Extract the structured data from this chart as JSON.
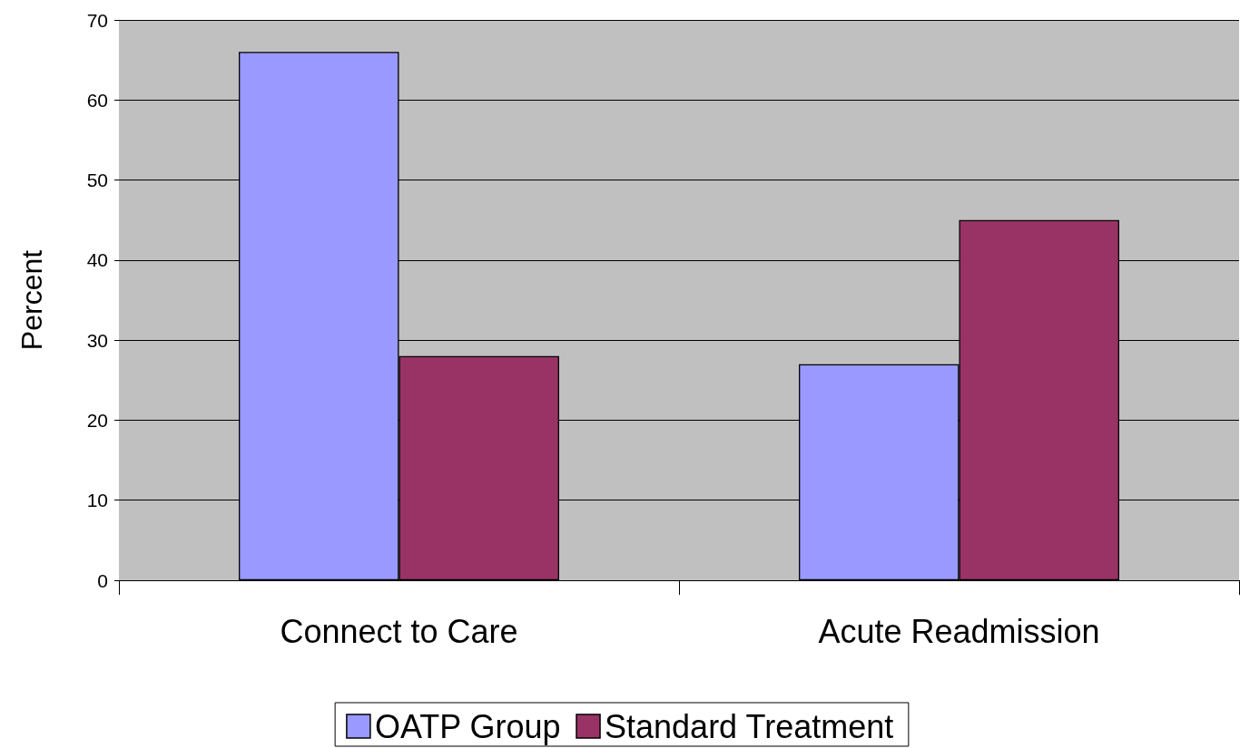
{
  "chart_data": {
    "type": "bar",
    "ylabel": "Percent",
    "categories": [
      "Connect to Care",
      "Acute Readmission"
    ],
    "series": [
      {
        "name": "OATP Group",
        "color": "#9999ff",
        "values": [
          66,
          27
        ]
      },
      {
        "name": "Standard Treatment",
        "color": "#993366",
        "values": [
          28,
          45
        ]
      }
    ],
    "ylim": [
      0,
      70
    ],
    "yticks": [
      0,
      10,
      20,
      30,
      40,
      50,
      60,
      70
    ],
    "grid": "y",
    "legend": "bottom"
  }
}
